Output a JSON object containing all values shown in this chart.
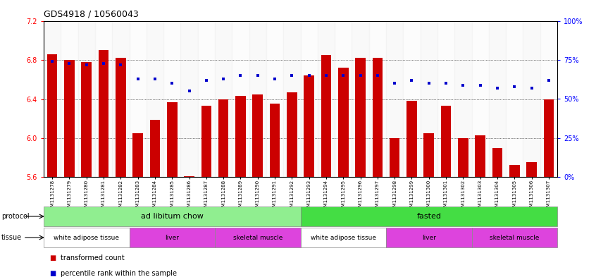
{
  "title": "GDS4918 / 10560043",
  "samples": [
    "GSM1131278",
    "GSM1131279",
    "GSM1131280",
    "GSM1131281",
    "GSM1131282",
    "GSM1131283",
    "GSM1131284",
    "GSM1131285",
    "GSM1131286",
    "GSM1131287",
    "GSM1131288",
    "GSM1131289",
    "GSM1131290",
    "GSM1131291",
    "GSM1131292",
    "GSM1131293",
    "GSM1131294",
    "GSM1131295",
    "GSM1131296",
    "GSM1131297",
    "GSM1131298",
    "GSM1131299",
    "GSM1131300",
    "GSM1131301",
    "GSM1131302",
    "GSM1131303",
    "GSM1131304",
    "GSM1131305",
    "GSM1131306",
    "GSM1131307"
  ],
  "bar_values": [
    6.86,
    6.8,
    6.78,
    6.9,
    6.82,
    6.05,
    6.19,
    6.37,
    5.61,
    6.33,
    6.4,
    6.43,
    6.45,
    6.35,
    6.47,
    6.64,
    6.85,
    6.72,
    6.82,
    6.82,
    6.0,
    6.38,
    6.05,
    6.33,
    6.0,
    6.03,
    5.9,
    5.72,
    5.75,
    6.4
  ],
  "percentile_values": [
    74,
    73,
    72,
    73,
    72,
    63,
    63,
    60,
    55,
    62,
    63,
    65,
    65,
    63,
    65,
    65,
    65,
    65,
    65,
    65,
    60,
    62,
    60,
    60,
    59,
    59,
    57,
    58,
    57,
    62
  ],
  "ylim_left": [
    5.6,
    7.2
  ],
  "ylim_right": [
    0,
    100
  ],
  "yticks_left": [
    5.6,
    6.0,
    6.4,
    6.8,
    7.2
  ],
  "yticks_right": [
    0,
    25,
    50,
    75,
    100
  ],
  "bar_color": "#CC0000",
  "dot_color": "#0000CC",
  "bar_bottom": 5.6,
  "protocols": [
    {
      "label": "ad libitum chow",
      "start": 0,
      "end": 15,
      "color": "#90EE90"
    },
    {
      "label": "fasted",
      "start": 15,
      "end": 30,
      "color": "#44DD44"
    }
  ],
  "tissues": [
    {
      "label": "white adipose tissue",
      "start": 0,
      "end": 5,
      "color": "#FFFFFF"
    },
    {
      "label": "liver",
      "start": 5,
      "end": 10,
      "color": "#DD44DD"
    },
    {
      "label": "skeletal muscle",
      "start": 10,
      "end": 15,
      "color": "#DD44DD"
    },
    {
      "label": "white adipose tissue",
      "start": 15,
      "end": 20,
      "color": "#FFFFFF"
    },
    {
      "label": "liver",
      "start": 20,
      "end": 25,
      "color": "#DD44DD"
    },
    {
      "label": "skeletal muscle",
      "start": 25,
      "end": 30,
      "color": "#DD44DD"
    }
  ],
  "protocol_label": "protocol",
  "tissue_label": "tissue",
  "legend_bar": "transformed count",
  "legend_dot": "percentile rank within the sample"
}
